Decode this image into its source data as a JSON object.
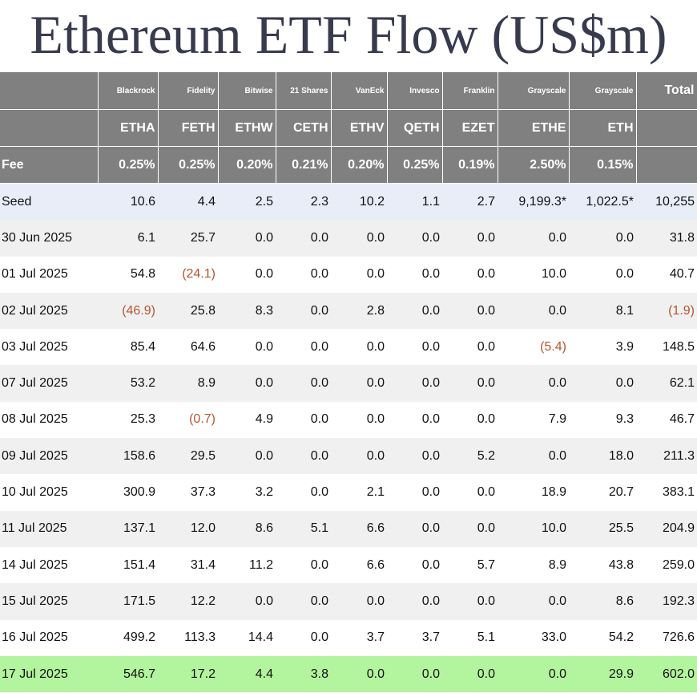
{
  "header": {
    "title": "Ethereum ETF Flow (US$m)"
  },
  "table": {
    "issuers": [
      "Blackrock",
      "Fidelity",
      "Bitwise",
      "21 Shares",
      "VanEck",
      "Invesco",
      "Franklin",
      "Grayscale",
      "Grayscale",
      "Total"
    ],
    "tickers": [
      "ETHA",
      "FETH",
      "ETHW",
      "CETH",
      "ETHV",
      "QETH",
      "EZET",
      "ETHE",
      "ETH"
    ],
    "fee_label": "Fee",
    "fees": [
      "0.25%",
      "0.25%",
      "0.20%",
      "0.21%",
      "0.20%",
      "0.25%",
      "0.19%",
      "2.50%",
      "0.15%"
    ],
    "rows": [
      {
        "label": "Seed",
        "cells": [
          "10.6",
          "4.4",
          "2.5",
          "2.3",
          "10.2",
          "1.1",
          "2.7",
          "9,199.3*",
          "1,022.5*",
          "10,255"
        ]
      },
      {
        "label": "30 Jun 2025",
        "cells": [
          "6.1",
          "25.7",
          "0.0",
          "0.0",
          "0.0",
          "0.0",
          "0.0",
          "0.0",
          "0.0",
          "31.8"
        ]
      },
      {
        "label": "01 Jul 2025",
        "cells": [
          "54.8",
          "(24.1)",
          "0.0",
          "0.0",
          "0.0",
          "0.0",
          "0.0",
          "10.0",
          "0.0",
          "40.7"
        ]
      },
      {
        "label": "02 Jul 2025",
        "cells": [
          "(46.9)",
          "25.8",
          "8.3",
          "0.0",
          "2.8",
          "0.0",
          "0.0",
          "0.0",
          "8.1",
          "(1.9)"
        ]
      },
      {
        "label": "03 Jul 2025",
        "cells": [
          "85.4",
          "64.6",
          "0.0",
          "0.0",
          "0.0",
          "0.0",
          "0.0",
          "(5.4)",
          "3.9",
          "148.5"
        ]
      },
      {
        "label": "07 Jul 2025",
        "cells": [
          "53.2",
          "8.9",
          "0.0",
          "0.0",
          "0.0",
          "0.0",
          "0.0",
          "0.0",
          "0.0",
          "62.1"
        ]
      },
      {
        "label": "08 Jul 2025",
        "cells": [
          "25.3",
          "(0.7)",
          "4.9",
          "0.0",
          "0.0",
          "0.0",
          "0.0",
          "7.9",
          "9.3",
          "46.7"
        ]
      },
      {
        "label": "09 Jul 2025",
        "cells": [
          "158.6",
          "29.5",
          "0.0",
          "0.0",
          "0.0",
          "0.0",
          "5.2",
          "0.0",
          "18.0",
          "211.3"
        ]
      },
      {
        "label": "10 Jul 2025",
        "cells": [
          "300.9",
          "37.3",
          "3.2",
          "0.0",
          "2.1",
          "0.0",
          "0.0",
          "18.9",
          "20.7",
          "383.1"
        ]
      },
      {
        "label": "11 Jul 2025",
        "cells": [
          "137.1",
          "12.0",
          "8.6",
          "5.1",
          "6.6",
          "0.0",
          "0.0",
          "10.0",
          "25.5",
          "204.9"
        ]
      },
      {
        "label": "14 Jul 2025",
        "cells": [
          "151.4",
          "31.4",
          "11.2",
          "0.0",
          "6.6",
          "0.0",
          "5.7",
          "8.9",
          "43.8",
          "259.0"
        ]
      },
      {
        "label": "15 Jul 2025",
        "cells": [
          "171.5",
          "12.2",
          "0.0",
          "0.0",
          "0.0",
          "0.0",
          "0.0",
          "0.0",
          "8.6",
          "192.3"
        ]
      },
      {
        "label": "16 Jul 2025",
        "cells": [
          "499.2",
          "113.3",
          "14.4",
          "0.0",
          "3.7",
          "3.7",
          "5.1",
          "33.0",
          "54.2",
          "726.6"
        ]
      },
      {
        "label": "17 Jul 2025",
        "cells": [
          "546.7",
          "17.2",
          "4.4",
          "3.8",
          "0.0",
          "0.0",
          "0.0",
          "0.0",
          "29.9",
          "602.0"
        ]
      }
    ]
  }
}
